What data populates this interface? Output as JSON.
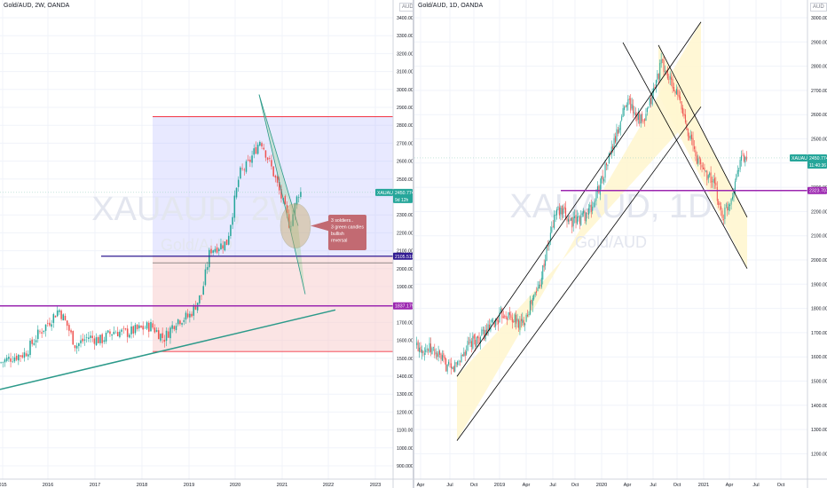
{
  "colors": {
    "bull": "#26a69a",
    "bear": "#ef5350",
    "grid": "#f0f3fa",
    "axis_text": "#131722",
    "purple_line": "#9c27b0",
    "navy_line": "#311b92",
    "teal_line": "#2c9a8a",
    "red_level": "#f23645",
    "blue_zone": "#b2b5ff",
    "red_zone": "#f7c9c9",
    "yellow_zone": "#fff6d0",
    "callout_bg": "#c26a72",
    "watermark": "#e3e6ef"
  },
  "left_chart": {
    "title": "Gold/AUD, 2W, OANDA",
    "currency_button": "AUD",
    "watermark_main": "XAUAUD, 2W",
    "watermark_sub": "Gold/AUD",
    "price_badge": "XAUAUD",
    "last_price": "2450.774",
    "last_price_sub": "9d 12h",
    "level_upper": "2105.510",
    "level_lower": "1837.175",
    "annotation": [
      "3 soldiers..",
      "3 green candles",
      "bullish",
      "reversal"
    ],
    "y_ticks": [
      "3400.000",
      "3300.000",
      "3200.000",
      "3100.000",
      "3000.000",
      "2900.000",
      "2800.000",
      "2700.000",
      "2600.000",
      "2500.000",
      "2400.000",
      "2300.000",
      "2200.000",
      "2100.000",
      "2000.000",
      "1900.000",
      "1800.000",
      "1700.000",
      "1600.000",
      "1500.000",
      "1400.000",
      "1300.000",
      "1200.000",
      "1100.000",
      "1000.000",
      "900.000"
    ],
    "x_ticks": [
      "015",
      "2016",
      "2017",
      "2018",
      "2019",
      "2020",
      "2021",
      "2022",
      "2023"
    ]
  },
  "right_chart": {
    "title": "Gold/AUD, 1D, OANDA",
    "currency_button": "AUD",
    "watermark_main": "XAUAUD, 1D",
    "watermark_sub": "Gold/AUD",
    "price_badge": "XAUAUD",
    "last_price": "2450.774",
    "last_price_sub": "11:40:36",
    "level": "2323.707",
    "y_ticks": [
      "3000.000",
      "2900.000",
      "2800.000",
      "2700.000",
      "2600.000",
      "2500.000",
      "2400.000",
      "2300.000",
      "2200.000",
      "2100.000",
      "2000.000",
      "1900.000",
      "1800.000",
      "1700.000",
      "1600.000",
      "1500.000",
      "1400.000",
      "1300.000",
      "1200.000"
    ],
    "x_ticks": [
      "Apr",
      "Jul",
      "Oct",
      "2019",
      "Apr",
      "Jul",
      "Oct",
      "2020",
      "Apr",
      "Jul",
      "Oct",
      "2021",
      "Apr",
      "Jul",
      "Oct"
    ]
  },
  "chart_data": [
    {
      "type": "candlestick",
      "title": "Gold/AUD, 2W, OANDA",
      "ylim": [
        900,
        3400
      ],
      "x_ticks": [
        "015",
        "2016",
        "2017",
        "2018",
        "2019",
        "2020",
        "2021",
        "2022",
        "2023"
      ],
      "close_path": [
        [
          "2015-06",
          1530
        ],
        [
          "2015-09",
          1560
        ],
        [
          "2015-12",
          1580
        ],
        [
          "2016-03",
          1680
        ],
        [
          "2016-06",
          1760
        ],
        [
          "2016-08",
          1820
        ],
        [
          "2016-10",
          1730
        ],
        [
          "2016-12",
          1620
        ],
        [
          "2017-03",
          1670
        ],
        [
          "2017-06",
          1650
        ],
        [
          "2017-09",
          1700
        ],
        [
          "2017-12",
          1690
        ],
        [
          "2018-03",
          1710
        ],
        [
          "2018-06",
          1730
        ],
        [
          "2018-09",
          1660
        ],
        [
          "2018-12",
          1760
        ],
        [
          "2019-03",
          1780
        ],
        [
          "2019-06",
          1900
        ],
        [
          "2019-08",
          2140
        ],
        [
          "2019-12",
          2180
        ],
        [
          "2020-03",
          2550
        ],
        [
          "2020-05",
          2600
        ],
        [
          "2020-08",
          2740
        ],
        [
          "2020-11",
          2560
        ],
        [
          "2021-01",
          2420
        ],
        [
          "2021-03",
          2270
        ],
        [
          "2021-05",
          2450
        ]
      ],
      "horizontal_levels": [
        2105.51,
        1837.175
      ],
      "last_price": 2450.774
    },
    {
      "type": "candlestick",
      "title": "Gold/AUD, 1D, OANDA",
      "ylim": [
        1200,
        3000
      ],
      "x_ticks": [
        "Apr",
        "Jul",
        "Oct",
        "2019",
        "Apr",
        "Jul",
        "Oct",
        "2020",
        "Apr",
        "Jul",
        "Oct",
        "2021",
        "Apr",
        "Jul",
        "Oct"
      ],
      "close_path": [
        [
          "2018-04",
          1720
        ],
        [
          "2018-06",
          1700
        ],
        [
          "2018-08",
          1620
        ],
        [
          "2018-10",
          1720
        ],
        [
          "2018-12",
          1770
        ],
        [
          "2019-02",
          1850
        ],
        [
          "2019-04",
          1800
        ],
        [
          "2019-06",
          1950
        ],
        [
          "2019-08",
          2250
        ],
        [
          "2019-10",
          2200
        ],
        [
          "2019-12",
          2250
        ],
        [
          "2020-02",
          2450
        ],
        [
          "2020-03",
          2550
        ],
        [
          "2020-04",
          2680
        ],
        [
          "2020-06",
          2580
        ],
        [
          "2020-08",
          2820
        ],
        [
          "2020-10",
          2680
        ],
        [
          "2020-12",
          2450
        ],
        [
          "2021-02",
          2350
        ],
        [
          "2021-03",
          2220
        ],
        [
          "2021-04",
          2300
        ],
        [
          "2021-05",
          2450
        ]
      ],
      "horizontal_levels": [
        2323.707
      ],
      "last_price": 2450.774
    }
  ]
}
